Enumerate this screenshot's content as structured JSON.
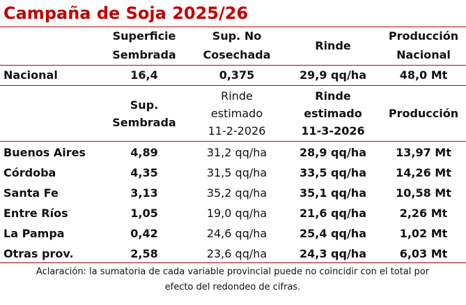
{
  "title": "Campaña de Soja 2025/26",
  "table": {
    "header": [
      [
        "Superficie",
        "Sembrada"
      ],
      [
        "Sup. No",
        "Cosechada"
      ],
      [
        "Rinde"
      ],
      [
        "Producción",
        "Nacional"
      ]
    ],
    "national": [
      "Nacional",
      "16,4",
      "0,375",
      "29,9 qq/ha",
      "48,0 Mt"
    ],
    "subheader": [
      [
        "Sup.",
        "Sembrada"
      ],
      [
        "Rinde",
        "estimado",
        "11-2-2026"
      ],
      [
        "Rinde",
        "estimado",
        "11-3-2026"
      ],
      [
        "Producción"
      ]
    ],
    "rows": [
      [
        "Buenos Aires",
        "4,89",
        "31,2 qq/ha",
        "28,9 qq/ha",
        "13,97 Mt"
      ],
      [
        "Córdoba",
        "4,35",
        "31,5 qq/ha",
        "33,5 qq/ha",
        "14,26 Mt"
      ],
      [
        "Santa Fe",
        "3,13",
        "35,2 qq/ha",
        "35,1 qq/ha",
        "10,58 Mt"
      ],
      [
        "Entre Ríos",
        "1,05",
        "19,0 qq/ha",
        "21,6 qq/ha",
        "2,26 Mt"
      ],
      [
        "La Pampa",
        "0,42",
        "24,6 qq/ha",
        "25,4 qq/ha",
        "1,02 Mt"
      ],
      [
        "Otras prov.",
        "2,58",
        "23,6 qq/ha",
        "24,3 qq/ha",
        "6,03 Mt"
      ]
    ]
  },
  "footnote": [
    "Aclaración: la sumatoria de cada variable provincial puede no coincidir con el total por",
    "efecto del redondeo de cifras."
  ]
}
